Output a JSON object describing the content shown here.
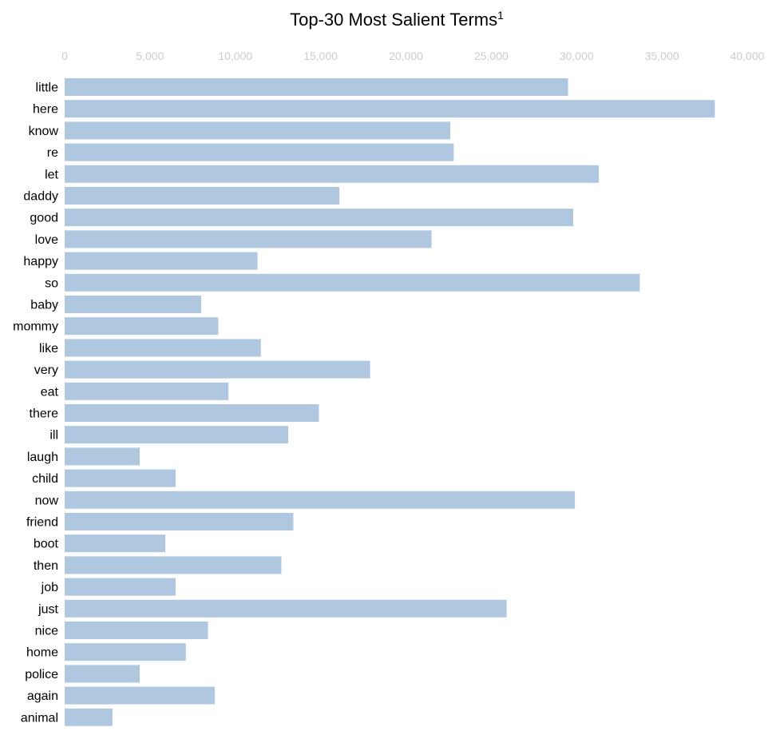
{
  "chart_data": {
    "type": "bar",
    "orientation": "horizontal",
    "title": "Top-30 Most Salient Terms",
    "title_superscript": "1",
    "xlabel": "",
    "ylabel": "",
    "xlim": [
      0,
      40000
    ],
    "x_ticks": [
      0,
      5000,
      10000,
      15000,
      20000,
      25000,
      30000,
      35000,
      40000
    ],
    "x_tick_labels": [
      "0",
      "5,000",
      "10,000",
      "15,000",
      "20,000",
      "25,000",
      "30,000",
      "35,000",
      "40,000"
    ],
    "x_axis_position": "top",
    "grid": false,
    "legend": "none",
    "bar_color": "#b0c7e0",
    "tick_label_color": "#cccccc",
    "categories": [
      "little",
      "here",
      "know",
      "re",
      "let",
      "daddy",
      "good",
      "love",
      "happy",
      "so",
      "baby",
      "mommy",
      "like",
      "very",
      "eat",
      "there",
      "ill",
      "laugh",
      "child",
      "now",
      "friend",
      "boot",
      "then",
      "job",
      "just",
      "nice",
      "home",
      "police",
      "again",
      "animal"
    ],
    "values": [
      29500,
      38100,
      22600,
      22800,
      31300,
      16100,
      29800,
      21500,
      11300,
      33700,
      8000,
      9000,
      11500,
      17900,
      9600,
      14900,
      13100,
      4400,
      6500,
      29900,
      13400,
      5900,
      12700,
      6500,
      25900,
      8400,
      7100,
      4400,
      8800,
      2800
    ]
  }
}
